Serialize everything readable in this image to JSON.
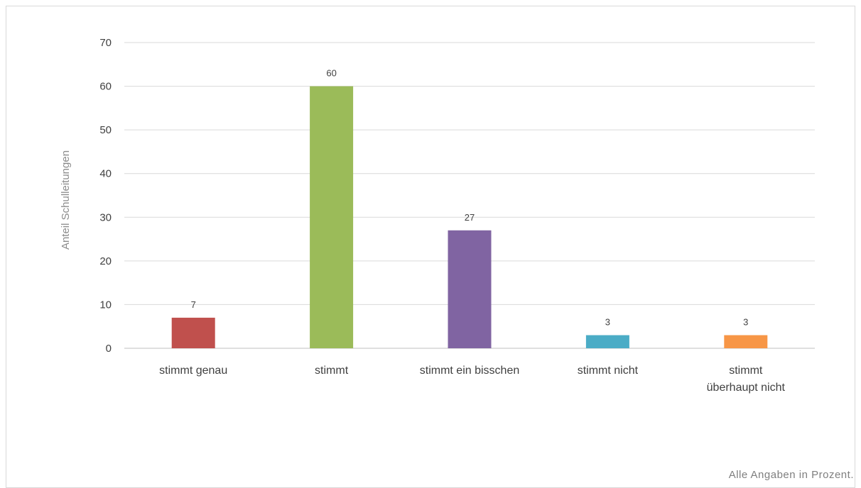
{
  "footnote": "Alle Angaben in Prozent.",
  "chart_data": {
    "type": "bar",
    "title": "",
    "xlabel": "",
    "ylabel": "Anteil Schulleitungen",
    "ylim": [
      0,
      70
    ],
    "yticks": [
      0,
      10,
      20,
      30,
      40,
      50,
      60,
      70
    ],
    "grid": true,
    "legend": "none",
    "categories": [
      "stimmt genau",
      "stimmt",
      "stimmt ein bisschen",
      "stimmt nicht",
      "stimmt überhaupt nicht"
    ],
    "category_lines": [
      [
        "stimmt genau"
      ],
      [
        "stimmt"
      ],
      [
        "stimmt ein bisschen"
      ],
      [
        "stimmt nicht"
      ],
      [
        "stimmt",
        "überhaupt nicht"
      ]
    ],
    "values": [
      7,
      60,
      27,
      3,
      3
    ],
    "data_labels": [
      "7",
      "60",
      "27",
      "3",
      "3"
    ],
    "colors": [
      "#c0504d",
      "#9bbb59",
      "#8064a2",
      "#4bacc6",
      "#f79646"
    ]
  }
}
